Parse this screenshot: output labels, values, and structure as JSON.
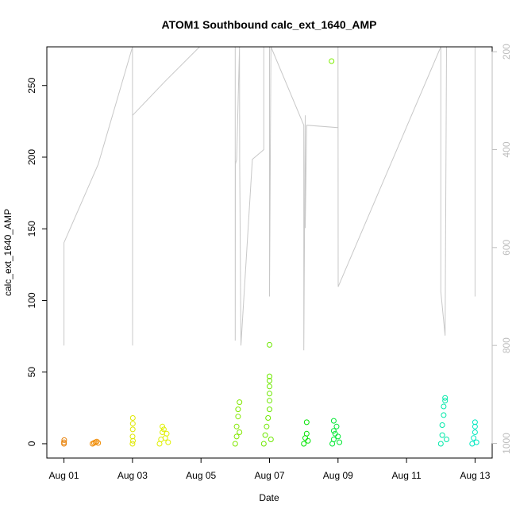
{
  "chart_data": {
    "type": "scatter",
    "title": "ATOM1 Southbound calc_ext_1640_AMP",
    "xlabel": "Date",
    "ylabel": "calc_ext_1640_AMP",
    "x_is_date": true,
    "xlim": [
      "2012-07-31T12:00",
      "2012-08-13T12:00"
    ],
    "ylim": [
      -10,
      277
    ],
    "x_ticks": [
      {
        "value": "2012-08-01",
        "label": "Aug 01"
      },
      {
        "value": "2012-08-03",
        "label": "Aug 03"
      },
      {
        "value": "2012-08-05",
        "label": "Aug 05"
      },
      {
        "value": "2012-08-07",
        "label": "Aug 07"
      },
      {
        "value": "2012-08-09",
        "label": "Aug 09"
      },
      {
        "value": "2012-08-11",
        "label": "Aug 11"
      },
      {
        "value": "2012-08-13",
        "label": "Aug 13"
      }
    ],
    "y_ticks": [
      0,
      50,
      100,
      150,
      200,
      250
    ],
    "secondary_axis": {
      "side": "right",
      "reversed": true,
      "range": [
        1030,
        190
      ],
      "ticks": [
        200,
        400,
        600,
        800,
        1000
      ],
      "color": "#bdbdbd"
    },
    "point_series": [
      {
        "color": "#e8820a",
        "points": [
          [
            "2012-08-01T00:00",
            0
          ],
          [
            "2012-08-01T00:00",
            1
          ],
          [
            "2012-08-01T00:10",
            2.5
          ]
        ]
      },
      {
        "color": "#f08a00",
        "points": [
          [
            "2012-08-01T20:00",
            0
          ],
          [
            "2012-08-01T21:00",
            0.5
          ],
          [
            "2012-08-01T22:00",
            1
          ],
          [
            "2012-08-01T23:00",
            1.5
          ],
          [
            "2012-08-02T00:00",
            0.5
          ]
        ]
      },
      {
        "color": "#dfe800",
        "points": [
          [
            "2012-08-03T00:00",
            0
          ],
          [
            "2012-08-03T00:05",
            5
          ],
          [
            "2012-08-03T00:10",
            10
          ],
          [
            "2012-08-03T00:15",
            14
          ],
          [
            "2012-08-03T00:15",
            18
          ],
          [
            "2012-08-03T00:20",
            2
          ]
        ]
      },
      {
        "color": "#dff000",
        "points": [
          [
            "2012-08-03T19:00",
            0
          ],
          [
            "2012-08-03T20:00",
            3
          ],
          [
            "2012-08-03T21:00",
            8
          ],
          [
            "2012-08-03T21:00",
            12
          ],
          [
            "2012-08-03T22:00",
            10
          ],
          [
            "2012-08-03T23:00",
            4
          ],
          [
            "2012-08-04T00:00",
            7
          ],
          [
            "2012-08-04T01:00",
            1
          ]
        ]
      },
      {
        "color": "#82e800",
        "points": [
          [
            "2012-08-06T00:00",
            0
          ],
          [
            "2012-08-06T01:00",
            5
          ],
          [
            "2012-08-06T01:00",
            12
          ],
          [
            "2012-08-06T02:00",
            19
          ],
          [
            "2012-08-06T02:00",
            24
          ],
          [
            "2012-08-06T03:00",
            29
          ],
          [
            "2012-08-06T03:00",
            8
          ]
        ]
      },
      {
        "color": "#6ee800",
        "points": [
          [
            "2012-08-06T20:00",
            0
          ],
          [
            "2012-08-06T21:00",
            6
          ],
          [
            "2012-08-06T22:00",
            12
          ],
          [
            "2012-08-06T23:00",
            18
          ],
          [
            "2012-08-07T00:00",
            24
          ],
          [
            "2012-08-07T00:00",
            30
          ],
          [
            "2012-08-07T00:00",
            35
          ],
          [
            "2012-08-07T00:00",
            40
          ],
          [
            "2012-08-07T00:00",
            44
          ],
          [
            "2012-08-07T00:00",
            47
          ],
          [
            "2012-08-07T00:00",
            69
          ],
          [
            "2012-08-07T01:00",
            3
          ]
        ]
      },
      {
        "color": "#00e400",
        "points": [
          [
            "2012-08-08T00:00",
            0
          ],
          [
            "2012-08-08T01:00",
            4
          ],
          [
            "2012-08-08T02:00",
            7
          ],
          [
            "2012-08-08T02:00",
            15
          ],
          [
            "2012-08-08T03:00",
            2
          ]
        ]
      },
      {
        "color": "#00e832",
        "points": [
          [
            "2012-08-08T20:00",
            0
          ],
          [
            "2012-08-08T21:00",
            3
          ],
          [
            "2012-08-08T21:00",
            9
          ],
          [
            "2012-08-08T21:00",
            16
          ],
          [
            "2012-08-08T22:00",
            7
          ],
          [
            "2012-08-08T23:00",
            12
          ],
          [
            "2012-08-09T00:00",
            5
          ],
          [
            "2012-08-09T01:00",
            1
          ]
        ]
      },
      {
        "color": "#00e8a8",
        "points": [
          [
            "2012-08-12T00:00",
            0
          ],
          [
            "2012-08-12T01:00",
            6
          ],
          [
            "2012-08-12T01:00",
            13
          ],
          [
            "2012-08-12T02:00",
            20
          ],
          [
            "2012-08-12T02:00",
            26
          ],
          [
            "2012-08-12T03:00",
            30
          ],
          [
            "2012-08-12T03:00",
            32
          ],
          [
            "2012-08-12T04:00",
            3
          ]
        ]
      },
      {
        "color": "#00e8c0",
        "points": [
          [
            "2012-08-12T22:00",
            0
          ],
          [
            "2012-08-12T23:00",
            4
          ],
          [
            "2012-08-13T00:00",
            8
          ],
          [
            "2012-08-13T00:00",
            12
          ],
          [
            "2012-08-13T00:00",
            15
          ],
          [
            "2012-08-13T01:00",
            1
          ]
        ]
      },
      {
        "color": "#7dee00",
        "points": [
          [
            "2012-08-08T19:30",
            267
          ]
        ]
      }
    ],
    "depth_trace": {
      "color": "#c8c8c8",
      "axis": "secondary",
      "points": [
        [
          "2012-08-01T00:00",
          800
        ],
        [
          "2012-08-01T00:00",
          590
        ],
        [
          "2012-08-02T00:00",
          430
        ],
        [
          "2012-08-03T00:00",
          190
        ],
        [
          "2012-08-03T00:05",
          800
        ],
        [
          "2012-08-03T00:05",
          330
        ],
        [
          "2012-08-03T23:00",
          260
        ],
        [
          "2012-08-04T23:00",
          190
        ],
        [
          "2012-08-06T00:00",
          190
        ],
        [
          "2012-08-06T00:00",
          790
        ],
        [
          "2012-08-06T00:05",
          430
        ],
        [
          "2012-08-06T01:00",
          420
        ],
        [
          "2012-08-06T03:00",
          190
        ],
        [
          "2012-08-06T03:05",
          420
        ],
        [
          "2012-08-06T04:00",
          800
        ],
        [
          "2012-08-06T12:00",
          420
        ],
        [
          "2012-08-06T20:00",
          400
        ],
        [
          "2012-08-06T20:00",
          190
        ],
        [
          "2012-08-07T00:00",
          190
        ],
        [
          "2012-08-07T00:00",
          700
        ],
        [
          "2012-08-07T01:00",
          190
        ],
        [
          "2012-08-08T00:00",
          350
        ],
        [
          "2012-08-08T00:00",
          810
        ],
        [
          "2012-08-08T01:00",
          330
        ],
        [
          "2012-08-08T01:00",
          560
        ],
        [
          "2012-08-08T02:00",
          350
        ],
        [
          "2012-08-09T00:00",
          355
        ],
        [
          "2012-08-09T00:00",
          190
        ],
        [
          "2012-08-09T00:05",
          680
        ],
        [
          "2012-08-12T00:00",
          190
        ],
        [
          "2012-08-12T00:00",
          690
        ],
        [
          "2012-08-12T03:00",
          780
        ],
        [
          "2012-08-12T04:00",
          190
        ],
        [
          "2012-08-13T00:00",
          190
        ],
        [
          "2012-08-13T00:00",
          700
        ]
      ]
    }
  }
}
